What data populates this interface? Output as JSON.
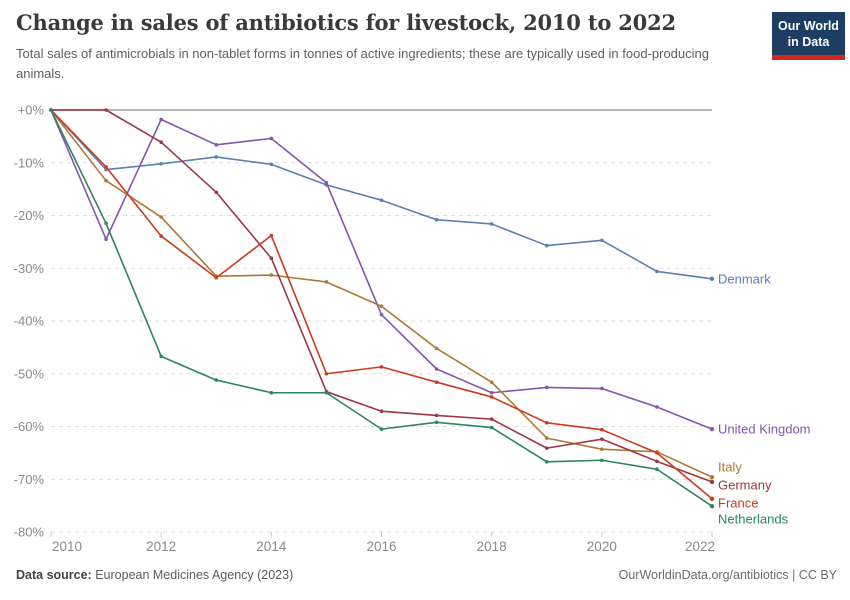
{
  "header": {
    "title": "Change in sales of antibiotics for livestock, 2010 to 2022",
    "subtitle": "Total sales of antimicrobials in non-tablet forms in tonnes of active ingredients; these are typically used in food-producing animals.",
    "logo": {
      "line1": "Our World",
      "line2": "in Data"
    }
  },
  "chart_data": {
    "type": "line",
    "title": "Change in sales of antibiotics for livestock, 2010 to 2022",
    "x": [
      2010,
      2011,
      2012,
      2013,
      2014,
      2015,
      2016,
      2017,
      2018,
      2019,
      2020,
      2021,
      2022
    ],
    "xticks": [
      2010,
      2012,
      2014,
      2016,
      2018,
      2020,
      2022
    ],
    "ylim": [
      -80,
      0
    ],
    "yticks": [
      {
        "v": 0,
        "label": "+0%"
      },
      {
        "v": -10,
        "label": "-10%"
      },
      {
        "v": -20,
        "label": "-20%"
      },
      {
        "v": -30,
        "label": "-30%"
      },
      {
        "v": -40,
        "label": "-40%"
      },
      {
        "v": -50,
        "label": "-50%"
      },
      {
        "v": -60,
        "label": "-60%"
      },
      {
        "v": -70,
        "label": "-70%"
      },
      {
        "v": -80,
        "label": "-80%"
      }
    ],
    "grid": "horizontal-dashed",
    "legend_position": "end-of-line",
    "unit": "%",
    "series": [
      {
        "name": "Denmark",
        "color": "#5D80B3",
        "label_dy": 0,
        "values": [
          0,
          -11.3,
          -10.2,
          -8.9,
          -10.3,
          -14.2,
          -17.1,
          -20.8,
          -21.6,
          -25.7,
          -24.7,
          -30.6,
          -32
        ]
      },
      {
        "name": "United Kingdom",
        "color": "#8455B2",
        "label_dy": 0,
        "values": [
          0,
          -24.5,
          -1.8,
          -6.6,
          -5.4,
          -13.8,
          -38.8,
          -49.1,
          -53.6,
          -52.6,
          -52.8,
          -56.3,
          -60.5
        ]
      },
      {
        "name": "Italy",
        "color": "#AE7937",
        "label_dy": -10,
        "values": [
          0,
          -13.4,
          -20.3,
          -31.5,
          -31.3,
          -32.6,
          -37.2,
          -45.2,
          -51.6,
          -62.2,
          -64.3,
          -64.8,
          -69.6
        ]
      },
      {
        "name": "Germany",
        "color": "#A03547",
        "label_dy": 3,
        "values": [
          0,
          0,
          -6.1,
          -15.6,
          -28.1,
          -53.4,
          -57.1,
          -57.9,
          -58.6,
          -64.1,
          -62.4,
          -66.6,
          -70.5
        ]
      },
      {
        "name": "France",
        "color": "#CC3B1D",
        "label_dy": 4,
        "values": [
          0,
          -10.8,
          -23.9,
          -31.8,
          -23.8,
          -50,
          -48.7,
          -51.6,
          -54.4,
          -59.3,
          -60.6,
          -65,
          -73.7
        ]
      },
      {
        "name": "Netherlands",
        "color": "#2C8465",
        "label_dy": 13,
        "values": [
          0,
          -21.5,
          -46.7,
          -51.2,
          -53.6,
          -53.6,
          -60.5,
          -59.2,
          -60.2,
          -66.7,
          -66.4,
          -68.1,
          -75.1
        ]
      }
    ]
  },
  "footer": {
    "source_label": "Data source:",
    "source_text": " European Medicines Agency (2023)",
    "url": "OurWorldinData.org/antibiotics",
    "license": " | CC BY"
  }
}
